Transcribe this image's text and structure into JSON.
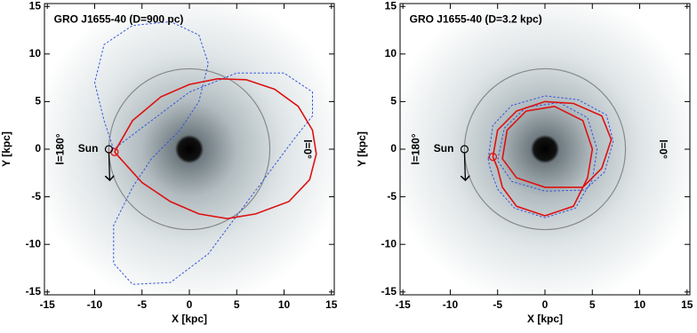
{
  "chart_data": [
    {
      "type": "orbit",
      "title": "GRO J1655-40  (D=900 pc)",
      "xlabel": "X [kpc]",
      "ylabel": "Y [kpc]",
      "xlim": [
        -15.3,
        15.3
      ],
      "ylim": [
        -15.3,
        15.3
      ],
      "xticks": [
        -15,
        -10,
        -5,
        0,
        5,
        10,
        15
      ],
      "yticks": [
        -15,
        -10,
        -5,
        0,
        5,
        10,
        15
      ],
      "sun_label": "Sun",
      "left_label": "l=180°",
      "right_label": "l=0°",
      "sun": [
        -8.5,
        0
      ],
      "solar_circle_radius": 8.5,
      "series": [
        {
          "color": "#3355dd",
          "linestyle": "dashed",
          "x": [
            -8,
            -9,
            -10,
            -9,
            -6,
            -2,
            1,
            2,
            1,
            -1,
            -4,
            -6,
            -8,
            -8,
            -6,
            -2,
            2,
            5,
            8,
            11,
            13,
            13,
            10,
            5,
            0,
            -4,
            -8
          ],
          "y": [
            0,
            3,
            7,
            11,
            13,
            13.4,
            12,
            9,
            5,
            2,
            -1,
            -4,
            -8,
            -12,
            -14.2,
            -14,
            -11,
            -7,
            -3,
            1,
            3.5,
            6,
            8,
            8,
            6,
            3,
            0
          ]
        },
        {
          "color": "#dd1111",
          "linestyle": "solid",
          "x": [
            -7.9,
            -6,
            -3,
            0,
            3,
            6,
            9,
            11.5,
            13,
            13.4,
            12.7,
            10.5,
            7,
            4,
            1,
            -2,
            -5,
            -7.9
          ],
          "y": [
            -0.3,
            3,
            5.5,
            6.8,
            7.4,
            7.3,
            6.3,
            4.5,
            2,
            -0.5,
            -3.2,
            -5.5,
            -6.8,
            -7.3,
            -6.8,
            -5.5,
            -3.5,
            -0.3
          ]
        }
      ]
    },
    {
      "type": "orbit",
      "title": "GRO J1655-40  (D=3.2 kpc)",
      "xlabel": "X [kpc]",
      "ylabel": "Y [kpc]",
      "xlim": [
        -15.3,
        15.3
      ],
      "ylim": [
        -15.3,
        15.3
      ],
      "xticks": [
        -15,
        -10,
        -5,
        0,
        5,
        10,
        15
      ],
      "yticks": [
        -15,
        -10,
        -5,
        0,
        5,
        10,
        15
      ],
      "sun_label": "Sun",
      "left_label": "l=180°",
      "right_label": "l=0°",
      "sun": [
        -8.5,
        0
      ],
      "solar_circle_radius": 8.5,
      "series": [
        {
          "color": "#3355dd",
          "linestyle": "dashed",
          "x": [
            -6,
            -5.5,
            -3.5,
            0,
            3.5,
            6.5,
            7.2,
            6.3,
            4.2,
            0,
            -3.5,
            -5,
            -4.3,
            -2,
            1.5,
            4.5,
            5.5,
            5,
            3.2,
            0,
            -3.2,
            -5,
            -5.8,
            -6
          ],
          "y": [
            -1,
            2.5,
            4.6,
            5.6,
            5.2,
            3.6,
            0.8,
            -2.4,
            -4.3,
            -4.4,
            -3.4,
            -1.2,
            2.2,
            4.4,
            4.9,
            3.3,
            0,
            -3.2,
            -6.2,
            -7.2,
            -6.2,
            -4.2,
            -2,
            -1
          ]
        },
        {
          "color": "#dd1111",
          "linestyle": "solid",
          "x": [
            -5.5,
            -5,
            -3,
            0,
            3,
            6,
            7,
            6,
            4,
            0,
            -3,
            -4.5,
            -4,
            -2,
            1,
            4,
            5,
            4.5,
            3,
            0,
            -3,
            -4.5,
            -5,
            -5.5
          ],
          "y": [
            -0.8,
            2,
            4,
            5,
            4.8,
            3.5,
            1,
            -2,
            -4,
            -4,
            -3,
            -1,
            2,
            4,
            4.5,
            3,
            0,
            -3,
            -6,
            -7,
            -6,
            -4,
            -2,
            -0.8
          ]
        }
      ]
    }
  ]
}
